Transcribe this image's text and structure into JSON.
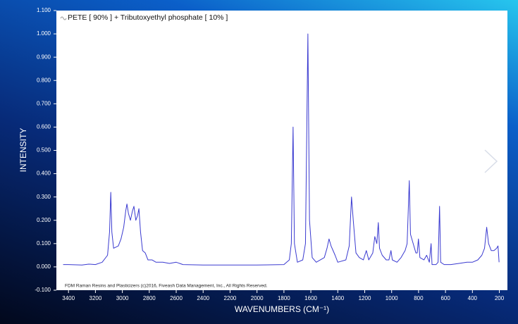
{
  "chart_data": {
    "type": "line",
    "xlabel": "WAVENUMBERS (CM⁻¹)",
    "ylabel": "INTENSITY",
    "annotation": "FDM Raman Resins and Plasticizers (c)2016, Fiveash Data Management, Inc., All Rights Reserved.",
    "xlim": [
      3490,
      140
    ],
    "ylim": [
      -0.1,
      1.1
    ],
    "xticks": [
      3400,
      3200,
      3000,
      2800,
      2600,
      2400,
      2200,
      2000,
      1800,
      1600,
      1400,
      1200,
      1000,
      800,
      600,
      400,
      200
    ],
    "yticks": [
      {
        "value": -0.1,
        "label": "-0.100"
      },
      {
        "value": 0,
        "label": "0.000"
      },
      {
        "value": 0.1,
        "label": "0.100"
      },
      {
        "value": 0.2,
        "label": "0.200"
      },
      {
        "value": 0.3,
        "label": "0.300"
      },
      {
        "value": 0.4,
        "label": "0.400"
      },
      {
        "value": 0.5,
        "label": "0.500"
      },
      {
        "value": 0.6,
        "label": "0.600"
      },
      {
        "value": 0.7,
        "label": "0.700"
      },
      {
        "value": 0.8,
        "label": "0.800"
      },
      {
        "value": 0.9,
        "label": "0.900"
      },
      {
        "value": 1.0,
        "label": "1.000"
      },
      {
        "value": 1.1,
        "label": "1.100"
      }
    ],
    "grid": false,
    "legend": "top-left",
    "series": [
      {
        "name": "PETE [ 90% ] + Tributoxyethyl phosphate [ 10% ]",
        "color": "#3a3ad0",
        "x": [
          3440,
          3400,
          3300,
          3250,
          3200,
          3150,
          3110,
          3095,
          3086,
          3078,
          3065,
          3030,
          3010,
          2990,
          2975,
          2966,
          2955,
          2940,
          2925,
          2914,
          2900,
          2887,
          2877,
          2865,
          2850,
          2830,
          2810,
          2780,
          2750,
          2700,
          2650,
          2600,
          2550,
          2400,
          2200,
          2000,
          1800,
          1760,
          1745,
          1732,
          1722,
          1700,
          1660,
          1640,
          1622,
          1610,
          1590,
          1560,
          1500,
          1480,
          1465,
          1450,
          1435,
          1420,
          1400,
          1340,
          1315,
          1298,
          1285,
          1265,
          1240,
          1210,
          1188,
          1170,
          1140,
          1125,
          1110,
          1099,
          1090,
          1070,
          1040,
          1020,
          1005,
          995,
          960,
          930,
          900,
          885,
          869,
          860,
          840,
          820,
          810,
          801,
          790,
          760,
          740,
          720,
          707,
          700,
          670,
          655,
          644,
          636,
          610,
          560,
          500,
          440,
          400,
          360,
          330,
          310,
          294,
          280,
          260,
          240,
          220,
          210,
          202
        ],
        "values": [
          0.01,
          0.01,
          0.008,
          0.012,
          0.01,
          0.02,
          0.05,
          0.15,
          0.32,
          0.15,
          0.08,
          0.09,
          0.12,
          0.17,
          0.24,
          0.27,
          0.23,
          0.2,
          0.24,
          0.26,
          0.2,
          0.22,
          0.25,
          0.15,
          0.07,
          0.06,
          0.03,
          0.03,
          0.02,
          0.02,
          0.015,
          0.02,
          0.01,
          0.008,
          0.008,
          0.008,
          0.01,
          0.03,
          0.1,
          0.6,
          0.1,
          0.02,
          0.03,
          0.1,
          1.0,
          0.2,
          0.04,
          0.02,
          0.04,
          0.08,
          0.12,
          0.09,
          0.07,
          0.05,
          0.02,
          0.03,
          0.09,
          0.3,
          0.2,
          0.06,
          0.04,
          0.03,
          0.07,
          0.03,
          0.06,
          0.13,
          0.1,
          0.19,
          0.08,
          0.05,
          0.03,
          0.03,
          0.07,
          0.03,
          0.02,
          0.04,
          0.07,
          0.1,
          0.37,
          0.14,
          0.1,
          0.06,
          0.06,
          0.12,
          0.04,
          0.03,
          0.05,
          0.02,
          0.1,
          0.01,
          0.01,
          0.02,
          0.26,
          0.02,
          0.01,
          0.01,
          0.015,
          0.02,
          0.02,
          0.03,
          0.05,
          0.08,
          0.17,
          0.1,
          0.07,
          0.07,
          0.08,
          0.09,
          0.02
        ]
      }
    ]
  }
}
